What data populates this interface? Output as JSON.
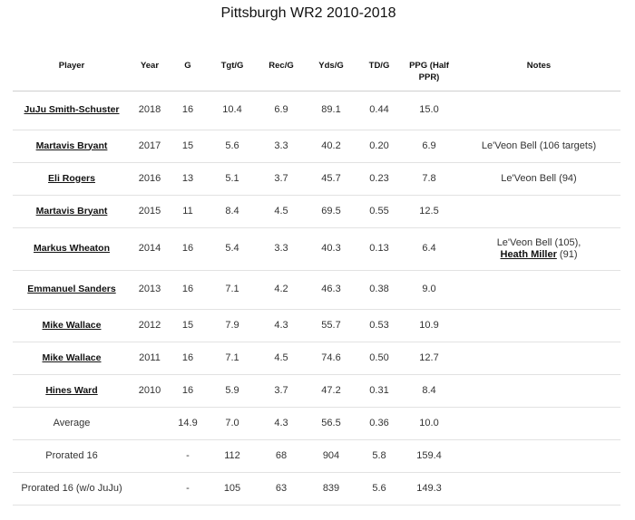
{
  "title": "Pittsburgh WR2 2010-2018",
  "headers": [
    "Player",
    "Year",
    "G",
    "Tgt/G",
    "Rec/G",
    "Yds/G",
    "TD/G",
    "PPG (Half PPR)",
    "Notes"
  ],
  "rows": [
    {
      "player": "JuJu Smith-Schuster",
      "year": "2018",
      "g": "16",
      "tgt": "10.4",
      "rec": "6.9",
      "yds": "89.1",
      "td": "0.44",
      "ppg": "15.0",
      "note": "",
      "note_link": "",
      "note_tail": ""
    },
    {
      "player": "Martavis Bryant",
      "year": "2017",
      "g": "15",
      "tgt": "5.6",
      "rec": "3.3",
      "yds": "40.2",
      "td": "0.20",
      "ppg": "6.9",
      "note": "Le'Veon Bell (106 targets)",
      "note_link": "",
      "note_tail": ""
    },
    {
      "player": "Eli Rogers",
      "year": "2016",
      "g": "13",
      "tgt": "5.1",
      "rec": "3.7",
      "yds": "45.7",
      "td": "0.23",
      "ppg": "7.8",
      "note": "Le'Veon Bell (94)",
      "note_link": "",
      "note_tail": ""
    },
    {
      "player": "Martavis Bryant",
      "year": "2015",
      "g": "11",
      "tgt": "8.4",
      "rec": "4.5",
      "yds": "69.5",
      "td": "0.55",
      "ppg": "12.5",
      "note": "",
      "note_link": "",
      "note_tail": ""
    },
    {
      "player": "Markus Wheaton",
      "year": "2014",
      "g": "16",
      "tgt": "5.4",
      "rec": "3.3",
      "yds": "40.3",
      "td": "0.13",
      "ppg": "6.4",
      "note": "Le'Veon Bell (105),",
      "note_link": "Heath Miller",
      "note_tail": " (91)"
    },
    {
      "player": "Emmanuel Sanders",
      "year": "2013",
      "g": "16",
      "tgt": "7.1",
      "rec": "4.2",
      "yds": "46.3",
      "td": "0.38",
      "ppg": "9.0",
      "note": "",
      "note_link": "",
      "note_tail": ""
    },
    {
      "player": "Mike Wallace",
      "year": "2012",
      "g": "15",
      "tgt": "7.9",
      "rec": "4.3",
      "yds": "55.7",
      "td": "0.53",
      "ppg": "10.9",
      "note": "",
      "note_link": "",
      "note_tail": ""
    },
    {
      "player": "Mike Wallace",
      "year": "2011",
      "g": "16",
      "tgt": "7.1",
      "rec": "4.5",
      "yds": "74.6",
      "td": "0.50",
      "ppg": "12.7",
      "note": "",
      "note_link": "",
      "note_tail": ""
    },
    {
      "player": "Hines Ward",
      "year": "2010",
      "g": "16",
      "tgt": "5.9",
      "rec": "3.7",
      "yds": "47.2",
      "td": "0.31",
      "ppg": "8.4",
      "note": "",
      "note_link": "",
      "note_tail": ""
    }
  ],
  "summary": [
    {
      "label": "Average",
      "year": "",
      "g": "14.9",
      "tgt": "7.0",
      "rec": "4.3",
      "yds": "56.5",
      "td": "0.36",
      "ppg": "10.0"
    },
    {
      "label": "Prorated 16",
      "year": "",
      "g": "-",
      "tgt": "112",
      "rec": "68",
      "yds": "904",
      "td": "5.8",
      "ppg": "159.4"
    },
    {
      "label": "Prorated 16 (w/o JuJu)",
      "year": "",
      "g": "-",
      "tgt": "105",
      "rec": "63",
      "yds": "839",
      "td": "5.6",
      "ppg": "149.3"
    }
  ]
}
